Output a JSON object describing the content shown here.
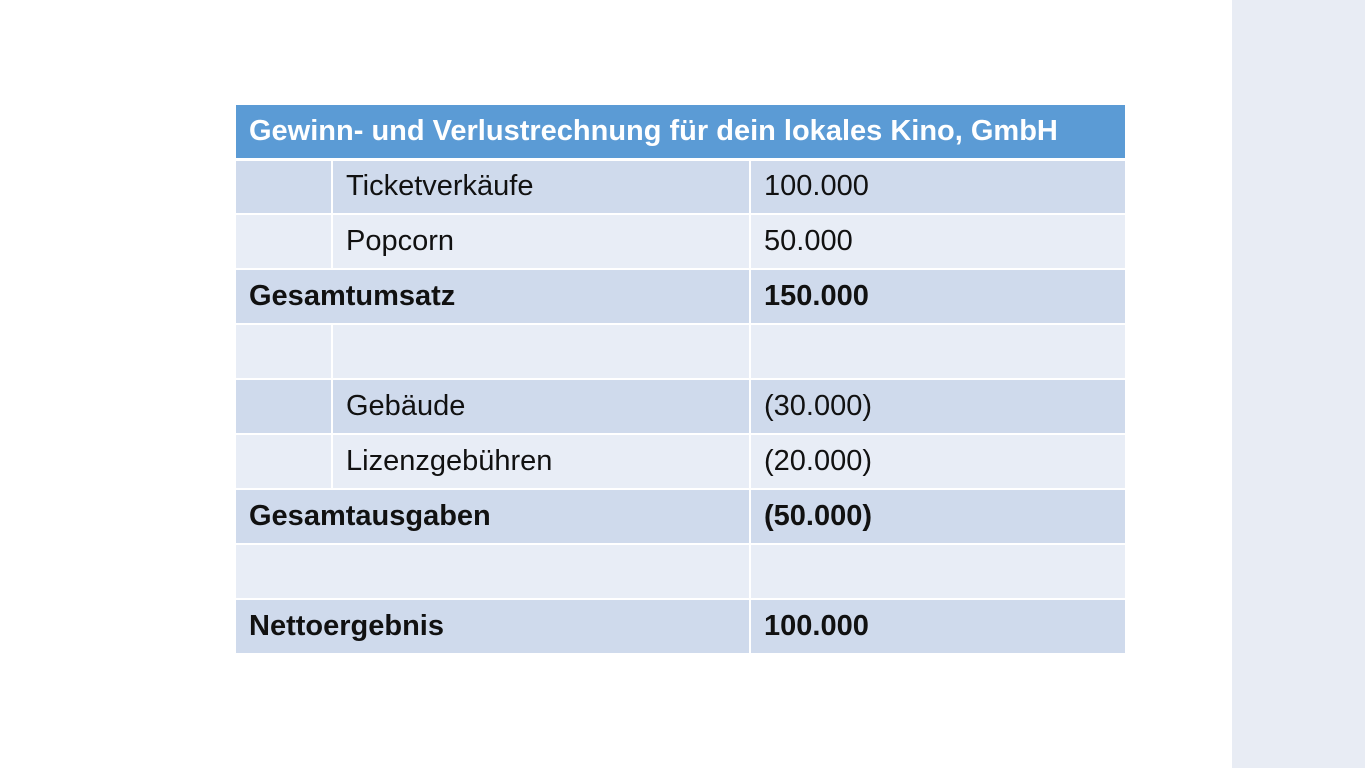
{
  "table": {
    "title": "Gewinn- und Verlustrechnung für dein lokales Kino, GmbH",
    "rows": [
      {
        "label": "Ticketverkäufe",
        "value": "100.000"
      },
      {
        "label": "Popcorn",
        "value": "50.000"
      },
      {
        "label": "Gesamtumsatz",
        "value": "150.000"
      },
      {
        "label": "",
        "value": ""
      },
      {
        "label": "Gebäude",
        "value": "(30.000)"
      },
      {
        "label": "Lizenzgebühren",
        "value": "(20.000)"
      },
      {
        "label": "Gesamtausgaben",
        "value": "(50.000)"
      },
      {
        "label": "",
        "value": ""
      },
      {
        "label": "Nettoergebnis",
        "value": "100.000"
      }
    ]
  },
  "colors": {
    "header": "#5b9bd5",
    "band_dark": "#cfdaec",
    "band_light": "#e8edf6",
    "side_panel": "#e8ecf4"
  }
}
